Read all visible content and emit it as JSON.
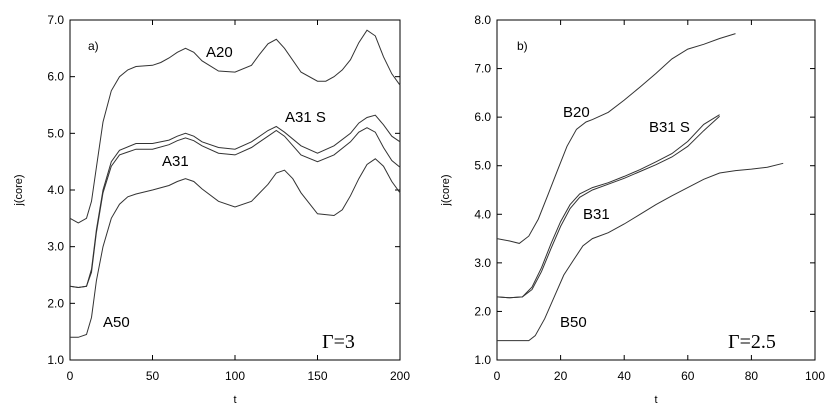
{
  "chart_data": [
    {
      "type": "line",
      "panel_label": "a)",
      "annotation": "Γ=3",
      "xlabel": "t",
      "ylabel": "j(core)",
      "xlim": [
        0,
        200
      ],
      "ylim": [
        1.0,
        7.0
      ],
      "x_tick_labels": [
        "0",
        "50",
        "100",
        "150",
        "200"
      ],
      "y_tick_labels": [
        "1.0",
        "2.0",
        "3.0",
        "4.0",
        "5.0",
        "6.0",
        "7.0"
      ],
      "series": [
        {
          "name": "A20",
          "x": [
            0,
            5,
            10,
            13,
            16,
            20,
            25,
            30,
            35,
            40,
            50,
            55,
            60,
            65,
            70,
            75,
            80,
            90,
            100,
            110,
            115,
            120,
            125,
            130,
            140,
            150,
            155,
            160,
            165,
            170,
            175,
            180,
            185,
            190,
            195,
            200
          ],
          "y": [
            3.5,
            3.42,
            3.5,
            3.8,
            4.4,
            5.2,
            5.75,
            6.0,
            6.12,
            6.18,
            6.2,
            6.25,
            6.33,
            6.43,
            6.5,
            6.43,
            6.28,
            6.1,
            6.08,
            6.2,
            6.4,
            6.58,
            6.66,
            6.5,
            6.08,
            5.92,
            5.92,
            6.0,
            6.12,
            6.3,
            6.6,
            6.82,
            6.72,
            6.35,
            6.05,
            5.85
          ]
        },
        {
          "name": "A31 S",
          "x": [
            0,
            5,
            10,
            13,
            16,
            20,
            25,
            30,
            40,
            50,
            60,
            65,
            70,
            75,
            80,
            90,
            100,
            110,
            120,
            125,
            130,
            140,
            150,
            160,
            170,
            175,
            180,
            185,
            190,
            195,
            200
          ],
          "y": [
            2.3,
            2.28,
            2.3,
            2.6,
            3.3,
            4.0,
            4.5,
            4.7,
            4.82,
            4.82,
            4.88,
            4.95,
            5.0,
            4.95,
            4.85,
            4.75,
            4.72,
            4.85,
            5.05,
            5.12,
            5.02,
            4.78,
            4.65,
            4.78,
            5.0,
            5.18,
            5.28,
            5.32,
            5.15,
            4.95,
            4.85
          ]
        },
        {
          "name": "A31",
          "x": [
            0,
            5,
            10,
            13,
            16,
            20,
            25,
            30,
            40,
            50,
            60,
            65,
            70,
            75,
            80,
            90,
            100,
            110,
            120,
            125,
            130,
            140,
            150,
            160,
            170,
            175,
            180,
            185,
            190,
            195,
            200
          ],
          "y": [
            2.3,
            2.28,
            2.3,
            2.55,
            3.25,
            3.95,
            4.42,
            4.62,
            4.72,
            4.72,
            4.8,
            4.87,
            4.92,
            4.87,
            4.78,
            4.65,
            4.62,
            4.75,
            4.95,
            5.05,
            4.95,
            4.62,
            4.5,
            4.62,
            4.85,
            5.02,
            5.1,
            5.02,
            4.75,
            4.52,
            4.4
          ]
        },
        {
          "name": "A50",
          "x": [
            0,
            5,
            10,
            13,
            16,
            20,
            25,
            30,
            35,
            40,
            50,
            60,
            65,
            70,
            75,
            80,
            90,
            100,
            110,
            120,
            125,
            130,
            135,
            140,
            150,
            160,
            165,
            170,
            175,
            180,
            185,
            190,
            195,
            200
          ],
          "y": [
            1.4,
            1.4,
            1.45,
            1.75,
            2.4,
            3.0,
            3.5,
            3.75,
            3.88,
            3.93,
            4.0,
            4.08,
            4.15,
            4.2,
            4.15,
            4.02,
            3.8,
            3.7,
            3.8,
            4.1,
            4.3,
            4.35,
            4.2,
            3.95,
            3.58,
            3.55,
            3.65,
            3.9,
            4.2,
            4.45,
            4.55,
            4.42,
            4.15,
            3.95
          ]
        }
      ]
    },
    {
      "type": "line",
      "panel_label": "b)",
      "annotation": "Γ=2.5",
      "xlabel": "t",
      "ylabel": "j(core)",
      "xlim": [
        0,
        100
      ],
      "ylim": [
        1.0,
        8.0
      ],
      "x_tick_labels": [
        "0",
        "20",
        "40",
        "60",
        "80",
        "100"
      ],
      "y_tick_labels": [
        "1.0",
        "2.0",
        "3.0",
        "4.0",
        "5.0",
        "6.0",
        "7.0",
        "8.0"
      ],
      "series": [
        {
          "name": "B20",
          "x": [
            0,
            4,
            7,
            10,
            13,
            16,
            19,
            22,
            25,
            28,
            30,
            35,
            40,
            45,
            50,
            55,
            60,
            65,
            70,
            75
          ],
          "y": [
            3.5,
            3.45,
            3.4,
            3.55,
            3.9,
            4.4,
            4.9,
            5.4,
            5.75,
            5.9,
            5.95,
            6.1,
            6.35,
            6.62,
            6.9,
            7.2,
            7.4,
            7.5,
            7.62,
            7.72
          ]
        },
        {
          "name": "B31 S",
          "x": [
            0,
            4,
            8,
            11,
            14,
            17,
            20,
            23,
            26,
            30,
            35,
            40,
            45,
            50,
            55,
            60,
            65,
            70
          ],
          "y": [
            2.3,
            2.28,
            2.3,
            2.5,
            2.9,
            3.4,
            3.85,
            4.2,
            4.42,
            4.55,
            4.65,
            4.78,
            4.92,
            5.08,
            5.25,
            5.5,
            5.85,
            6.05
          ]
        },
        {
          "name": "B31",
          "x": [
            0,
            4,
            8,
            11,
            14,
            17,
            20,
            23,
            26,
            30,
            35,
            40,
            45,
            50,
            55,
            60,
            65,
            70
          ],
          "y": [
            2.3,
            2.28,
            2.3,
            2.45,
            2.82,
            3.3,
            3.75,
            4.12,
            4.35,
            4.5,
            4.62,
            4.74,
            4.88,
            5.02,
            5.18,
            5.4,
            5.72,
            6.02
          ]
        },
        {
          "name": "B50",
          "x": [
            0,
            5,
            10,
            12,
            15,
            18,
            21,
            24,
            27,
            30,
            35,
            40,
            45,
            50,
            55,
            60,
            65,
            70,
            75,
            80,
            85,
            90
          ],
          "y": [
            1.4,
            1.4,
            1.4,
            1.5,
            1.85,
            2.3,
            2.75,
            3.05,
            3.35,
            3.5,
            3.62,
            3.8,
            4.0,
            4.2,
            4.38,
            4.55,
            4.72,
            4.85,
            4.9,
            4.93,
            4.97,
            5.05
          ]
        }
      ]
    }
  ]
}
